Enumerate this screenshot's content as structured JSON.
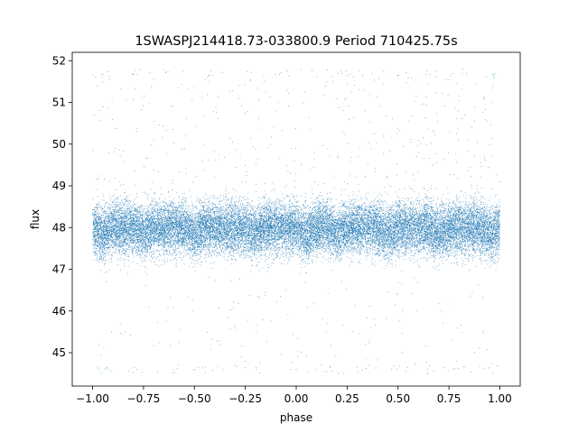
{
  "chart_data": {
    "type": "scatter",
    "title": "1SWASPJ214418.73-033800.9 Period 710425.75s",
    "xlabel": "phase",
    "ylabel": "flux",
    "xlim": [
      -1.1,
      1.1
    ],
    "ylim": [
      44.2,
      52.2
    ],
    "xticks": [
      -1.0,
      -0.75,
      -0.5,
      -0.25,
      0.0,
      0.25,
      0.5,
      0.75,
      1.0
    ],
    "xtick_labels": [
      "−1.00",
      "−0.75",
      "−0.50",
      "−0.25",
      "0.00",
      "0.25",
      "0.50",
      "0.75",
      "1.00"
    ],
    "yticks": [
      45,
      46,
      47,
      48,
      49,
      50,
      51,
      52
    ],
    "ytick_labels": [
      "45",
      "46",
      "47",
      "48",
      "49",
      "50",
      "51",
      "52"
    ],
    "grid": false,
    "legend": "none",
    "marker_color": "#1f77b4",
    "series": [
      {
        "phase_range": [
          -1.0,
          1.0
        ],
        "n_points": 24000,
        "flux_median": 48.0,
        "flux_core_range": [
          47.2,
          48.8
        ],
        "flux_min": 44.5,
        "flux_max": 51.8,
        "dip_phases": [
          -0.95,
          -0.75,
          -0.5,
          -0.2,
          0.05,
          0.2,
          0.45,
          0.7,
          0.95
        ],
        "dip_depth": 0.15,
        "spike_phases": [
          -0.98,
          -0.8,
          -0.7,
          -0.58,
          -0.38,
          -0.2,
          -0.13,
          -0.01,
          0.18,
          0.3,
          0.42,
          0.55,
          0.7,
          0.8,
          0.85,
          0.95
        ],
        "spike_max": 51.8,
        "outlier_fraction": 0.02
      }
    ]
  }
}
